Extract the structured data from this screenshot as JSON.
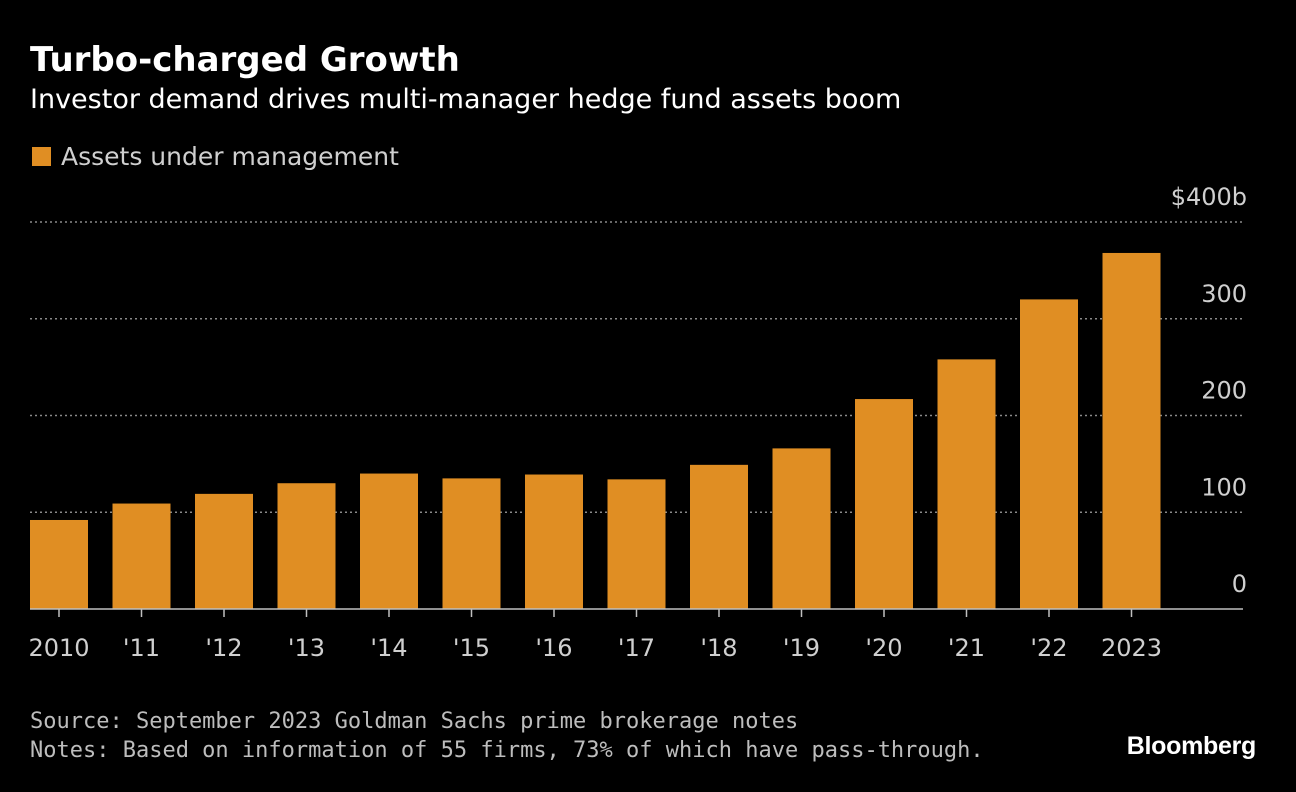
{
  "header": {
    "title": "Turbo-charged Growth",
    "subtitle": "Investor demand drives multi-manager hedge fund assets boom"
  },
  "legend": {
    "label": "Assets under management"
  },
  "colors": {
    "background": "#000000",
    "bar": "#e08e23",
    "grid": "#8a8a8a",
    "axis": "#bfbfbf",
    "text": "#ffffff",
    "muted_text": "#cfcfcf"
  },
  "chart_data": {
    "type": "bar",
    "title": "Turbo-charged Growth",
    "subtitle": "Investor demand drives multi-manager hedge fund assets boom",
    "categories": [
      "2010",
      "'11",
      "'12",
      "'13",
      "'14",
      "'15",
      "'16",
      "'17",
      "'18",
      "'19",
      "'20",
      "'21",
      "'22",
      "2023"
    ],
    "series": [
      {
        "name": "Assets under management",
        "values": [
          92,
          109,
          119,
          130,
          140,
          135,
          139,
          134,
          149,
          166,
          217,
          258,
          320,
          368
        ]
      }
    ],
    "ylim": [
      0,
      400
    ],
    "yticks": [
      0,
      100,
      200,
      300,
      400
    ],
    "ytick_labels": [
      "0",
      "100",
      "200",
      "300",
      "$400b"
    ],
    "ytick_position": "right",
    "grid": true,
    "grid_style": "dotted",
    "legend_position": "top-left"
  },
  "footer": {
    "source": "Source: September 2023 Goldman Sachs prime brokerage notes",
    "notes": "Notes: Based on information of 55 firms, 73% of which have pass-through.",
    "brand": "Bloomberg"
  }
}
